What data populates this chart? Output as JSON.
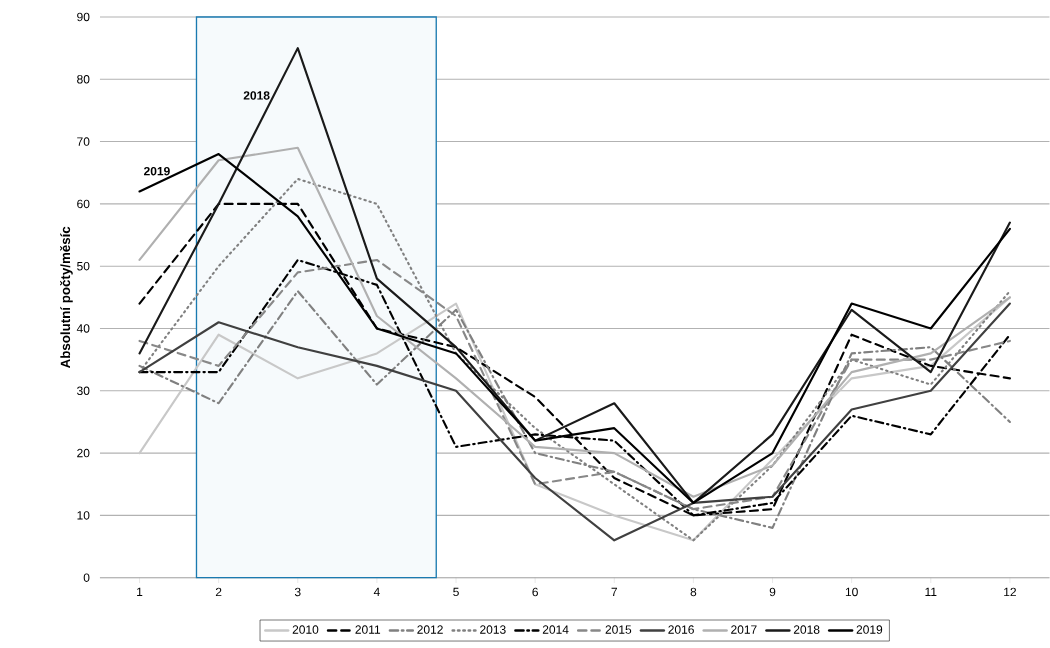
{
  "chart_data": {
    "type": "line",
    "ylabel": "Absolutní počty/měsíc",
    "x": [
      1,
      2,
      3,
      4,
      5,
      6,
      7,
      8,
      9,
      10,
      11,
      12
    ],
    "xlim": [
      0.5,
      12.5
    ],
    "xticks": [
      1,
      2,
      3,
      4,
      5,
      6,
      7,
      8,
      9,
      10,
      11,
      12
    ],
    "ylim": [
      0,
      90
    ],
    "yticks": [
      0,
      10,
      20,
      30,
      40,
      50,
      60,
      70,
      80,
      90
    ],
    "grid": "y",
    "legend": "bottom",
    "marker": "none",
    "bands": [
      {
        "axis": "x",
        "from": 1.72,
        "to": 4.75,
        "color": "#1a7ab0"
      }
    ],
    "annotations": [
      "2018",
      "2019"
    ],
    "series": [
      {
        "name": "2010",
        "color": "#c8c8c8",
        "line_style": "solid",
        "values": [
          20,
          39,
          32,
          36,
          44,
          15,
          10,
          6,
          19,
          32,
          34,
          45
        ]
      },
      {
        "name": "2011",
        "color": "#000000",
        "line_style": "dashed",
        "values": [
          44,
          60,
          60,
          40,
          37,
          29,
          16,
          10,
          11,
          39,
          34,
          32
        ]
      },
      {
        "name": "2012",
        "color": "#808080",
        "line_style": "dashdotted",
        "values": [
          34,
          28,
          46,
          31,
          43,
          20,
          17,
          11,
          8,
          36,
          37,
          25
        ]
      },
      {
        "name": "2013",
        "color": "#808080",
        "line_style": "dotted",
        "values": [
          33,
          50,
          64,
          60,
          36,
          24,
          15,
          6,
          18,
          35,
          31,
          46
        ]
      },
      {
        "name": "2014",
        "color": "#000000",
        "line_style": "dashdotted",
        "values": [
          33,
          33,
          51,
          47,
          21,
          23,
          22,
          10,
          12,
          26,
          23,
          39
        ]
      },
      {
        "name": "2015",
        "color": "#888888",
        "line_style": "dashed",
        "values": [
          38,
          34,
          49,
          51,
          42,
          15,
          17,
          11,
          13,
          35,
          35,
          38
        ]
      },
      {
        "name": "2016",
        "color": "#404040",
        "line_style": "solid",
        "values": [
          33,
          41,
          37,
          34,
          30,
          16,
          6,
          12,
          13,
          27,
          30,
          44
        ]
      },
      {
        "name": "2017",
        "color": "#b0b0b0",
        "line_style": "solid",
        "values": [
          51,
          67,
          69,
          42,
          32,
          21,
          20,
          13,
          18,
          33,
          36,
          45
        ]
      },
      {
        "name": "2018",
        "color": "#1a1a1a",
        "line_style": "solid",
        "values": [
          36,
          60,
          85,
          48,
          37,
          22,
          28,
          12,
          23,
          43,
          33,
          57
        ]
      },
      {
        "name": "2019",
        "color": "#000000",
        "line_style": "solid",
        "values": [
          62,
          68,
          58,
          40,
          36,
          22,
          24,
          12,
          20,
          44,
          40,
          56
        ]
      }
    ]
  }
}
